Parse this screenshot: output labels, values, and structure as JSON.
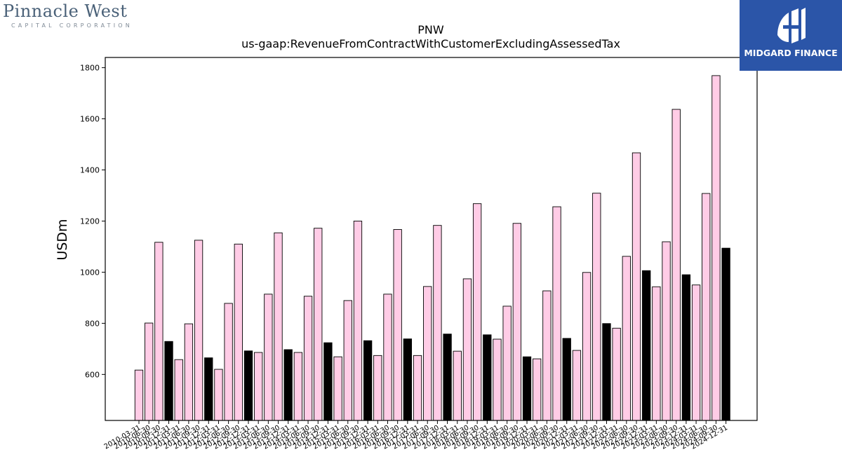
{
  "logos": {
    "left_name": "Pinnacle West",
    "left_sub": "CAPITAL CORPORATION",
    "right_brand": "MIDGARD FINANCE"
  },
  "colors": {
    "annual_bar": "#000000",
    "quarter_bar": "#ffcce6",
    "bar_edge": "#000000",
    "brand_blue": "#2b55a8"
  },
  "chart_data": {
    "type": "bar",
    "title": "PNW",
    "subtitle": "us-gaap:RevenueFromContractWithCustomerExcludingAssessedTax",
    "ylabel": "USDm",
    "xlabel": "",
    "ylim": [
      420,
      1840
    ],
    "yticks": [
      600,
      800,
      1000,
      1200,
      1400,
      1600,
      1800
    ],
    "grid": false,
    "categories": [
      "2010-03-31",
      "2010-06-30",
      "2010-09-30",
      "2010-12-31",
      "2011-03-31",
      "2011-06-30",
      "2011-09-30",
      "2011-12-31",
      "2012-03-31",
      "2012-06-30",
      "2012-09-30",
      "2012-12-31",
      "2013-03-31",
      "2013-06-30",
      "2013-09-30",
      "2013-12-31",
      "2014-03-31",
      "2014-06-30",
      "2014-09-30",
      "2014-12-31",
      "2015-03-31",
      "2015-06-30",
      "2015-09-30",
      "2015-12-31",
      "2016-03-31",
      "2016-06-30",
      "2016-09-30",
      "2016-12-31",
      "2017-03-31",
      "2017-06-30",
      "2017-09-30",
      "2017-12-31",
      "2018-03-31",
      "2018-06-30",
      "2018-09-30",
      "2018-12-31",
      "2019-03-31",
      "2019-06-30",
      "2019-09-30",
      "2019-12-31",
      "2020-03-31",
      "2020-06-30",
      "2020-09-30",
      "2020-12-31",
      "2021-03-31",
      "2021-06-30",
      "2021-09-30",
      "2021-12-31",
      "2022-03-31",
      "2022-06-30",
      "2022-09-30",
      "2022-12-31",
      "2023-03-31",
      "2023-06-30",
      "2023-09-30",
      "2023-12-31",
      "2024-03-31",
      "2024-06-30",
      "2024-09-30",
      "2024-12-31"
    ],
    "values": [
      617,
      801,
      1117,
      729,
      658,
      798,
      1125,
      665,
      620,
      878,
      1110,
      692,
      686,
      914,
      1154,
      697,
      686,
      906,
      1172,
      724,
      669,
      889,
      1200,
      732,
      674,
      914,
      1167,
      739,
      674,
      944,
      1183,
      758,
      691,
      974,
      1268,
      755,
      738,
      867,
      1191,
      669,
      661,
      927,
      1256,
      741,
      694,
      999,
      1309,
      799,
      781,
      1062,
      1467,
      1006,
      943,
      1119,
      1637,
      990,
      950,
      1308,
      1769,
      1094
    ],
    "annual_flags": [
      0,
      0,
      0,
      1,
      0,
      0,
      0,
      1,
      0,
      0,
      0,
      1,
      0,
      0,
      0,
      1,
      0,
      0,
      0,
      1,
      0,
      0,
      0,
      1,
      0,
      0,
      0,
      1,
      0,
      0,
      0,
      1,
      0,
      0,
      0,
      1,
      0,
      0,
      0,
      1,
      0,
      0,
      0,
      1,
      0,
      0,
      0,
      1,
      0,
      0,
      0,
      1,
      0,
      0,
      0,
      1,
      0,
      0,
      0,
      1
    ]
  }
}
